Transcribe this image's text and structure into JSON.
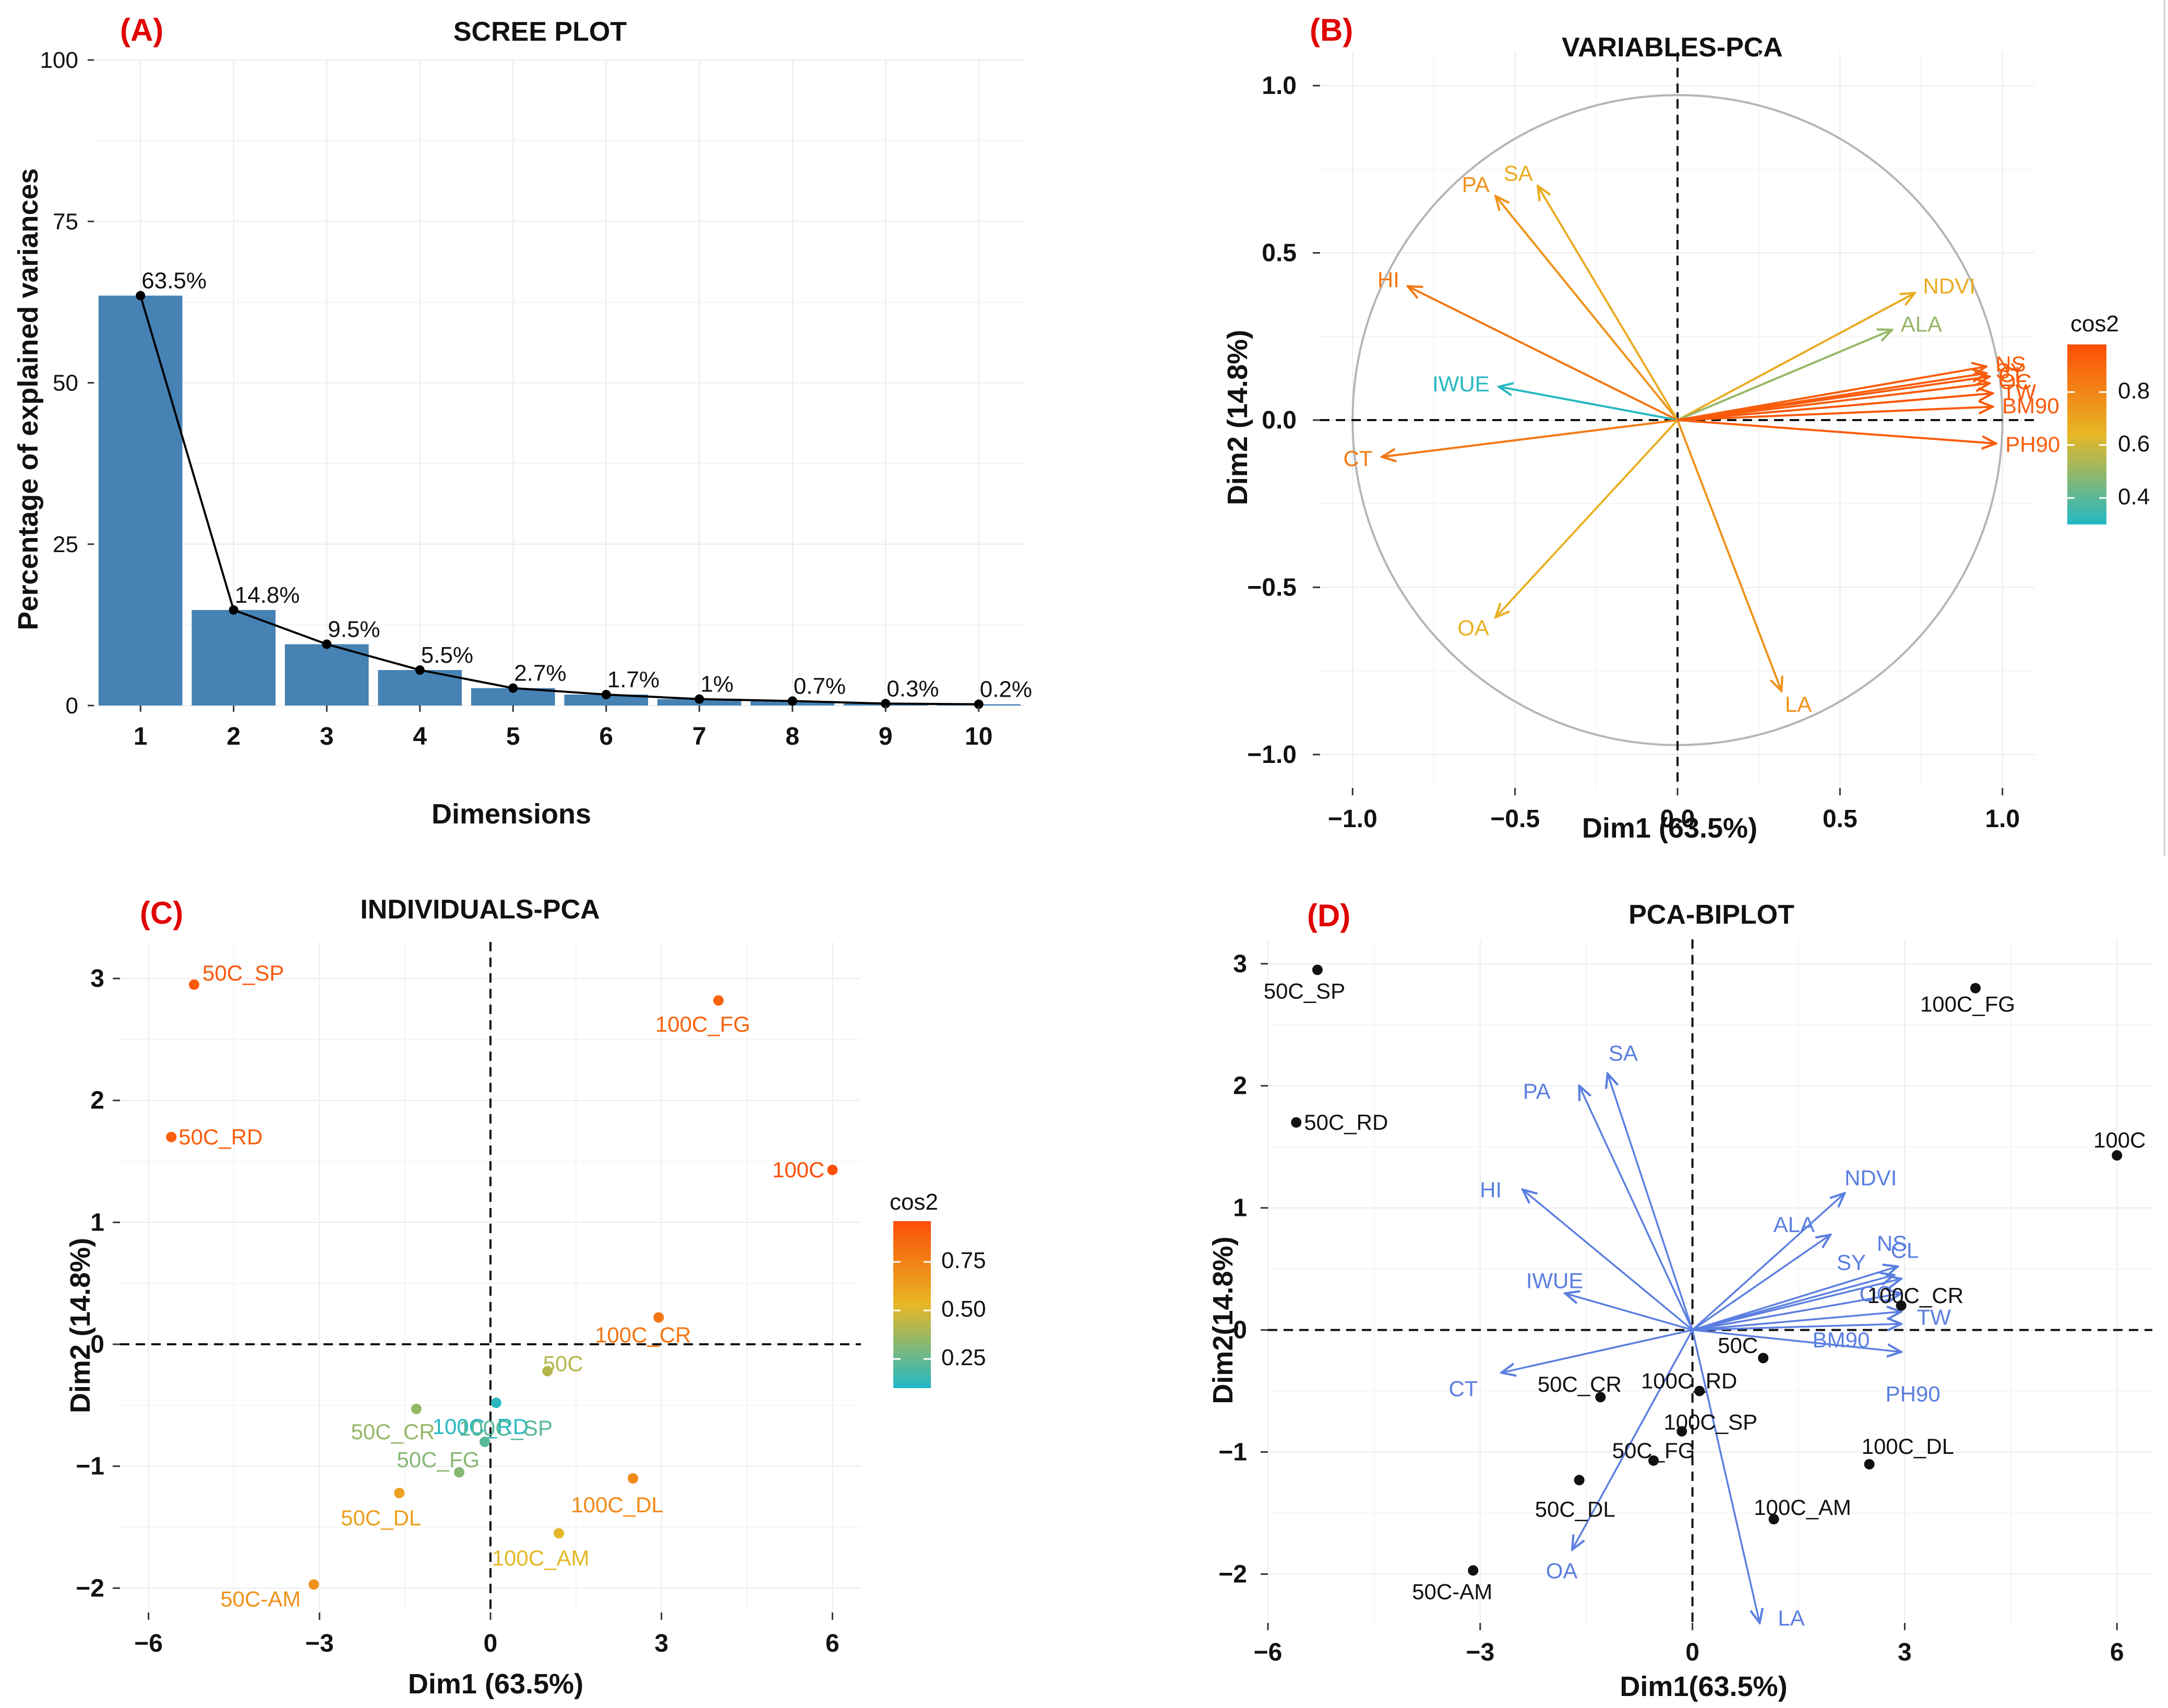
{
  "colors": {
    "bar": "#4682b4",
    "panel_label": "#e00000",
    "biplot_arrow": "#5b7fe0",
    "cos2_low": "#21b8c6",
    "cos2_mid": "#e8b725",
    "cos2_high": "#fc4e07"
  },
  "chart_data": [
    {
      "panel": "(A)",
      "type": "bar",
      "title": "SCREE PLOT",
      "xlabel": "Dimensions",
      "ylabel": "Percentage of explained variances",
      "categories": [
        "1",
        "2",
        "3",
        "4",
        "5",
        "6",
        "7",
        "8",
        "9",
        "10"
      ],
      "values": [
        63.5,
        14.8,
        9.5,
        5.5,
        2.7,
        1.7,
        1.0,
        0.7,
        0.3,
        0.2
      ],
      "value_labels": [
        "63.5%",
        "14.8%",
        "9.5%",
        "5.5%",
        "2.7%",
        "1.7%",
        "1%",
        "0.7%",
        "0.3%",
        "0.2%"
      ],
      "ylim": [
        0,
        100
      ],
      "yticks": [
        "0",
        "25",
        "50",
        "75",
        "100"
      ]
    },
    {
      "panel": "(B)",
      "type": "scatter",
      "title": "VARIABLES-PCA",
      "xlabel": "Dim1 (63.5%)",
      "ylabel": "Dim2 (14.8%)",
      "xlim": [
        -1.1,
        1.1
      ],
      "ylim": [
        -1.1,
        1.1
      ],
      "xticks": [
        "−1.0",
        "−0.5",
        "0.0",
        "0.5",
        "1.0"
      ],
      "yticks": [
        "−1.0",
        "−0.5",
        "0.0",
        "0.5",
        "1.0"
      ],
      "legend_title": "cos2",
      "legend_ticks": [
        "0.4",
        "0.6",
        "0.8"
      ],
      "cos2_range": [
        0.3,
        0.98
      ],
      "vectors": [
        {
          "name": "PA",
          "x": -0.56,
          "y": 0.67,
          "cos2": 0.76,
          "label_text": "PA"
        },
        {
          "name": "SA",
          "x": -0.43,
          "y": 0.7,
          "cos2": 0.68,
          "label_text": "SA"
        },
        {
          "name": "HI",
          "x": -0.83,
          "y": 0.4,
          "cos2": 0.85,
          "label_text": "HI"
        },
        {
          "name": "IWUE",
          "x": -0.55,
          "y": 0.1,
          "cos2": 0.31,
          "label_text": "IWUE"
        },
        {
          "name": "CT",
          "x": -0.91,
          "y": -0.11,
          "cos2": 0.84,
          "label_text": "CT"
        },
        {
          "name": "OA",
          "x": -0.56,
          "y": -0.59,
          "cos2": 0.66,
          "label_text": "OA"
        },
        {
          "name": "LA",
          "x": 0.32,
          "y": -0.81,
          "cos2": 0.76,
          "label_text": "LA"
        },
        {
          "name": "NDVI",
          "x": 0.73,
          "y": 0.38,
          "cos2": 0.68,
          "label_text": "NDVI"
        },
        {
          "name": "ALA",
          "x": 0.66,
          "y": 0.27,
          "cos2": 0.5,
          "label_text": "ALA"
        },
        {
          "name": "NS",
          "x": 0.95,
          "y": 0.16,
          "cos2": 0.93,
          "label_text": "NS"
        },
        {
          "name": "SY",
          "x": 0.95,
          "y": 0.14,
          "cos2": 0.93,
          "label_text": "SY"
        },
        {
          "name": "CL",
          "x": 0.96,
          "y": 0.13,
          "cos2": 0.94,
          "label_text": "CL"
        },
        {
          "name": "OC",
          "x": 0.96,
          "y": 0.11,
          "cos2": 0.93,
          "label_text": "OC"
        },
        {
          "name": "TW",
          "x": 0.97,
          "y": 0.08,
          "cos2": 0.95,
          "label_text": "TW"
        },
        {
          "name": "BM90",
          "x": 0.97,
          "y": 0.04,
          "cos2": 0.94,
          "label_text": "BM90"
        },
        {
          "name": "PH90",
          "x": 0.98,
          "y": -0.07,
          "cos2": 0.93,
          "label_text": "PH90"
        }
      ]
    },
    {
      "panel": "(C)",
      "type": "scatter",
      "title": "INDIVIDUALS-PCA",
      "xlabel": "Dim1 (63.5%)",
      "ylabel": "Dim2 (14.8%)",
      "xlim": [
        -6.5,
        6.5
      ],
      "ylim": [
        -2.2,
        3.3
      ],
      "xticks": [
        "−6",
        "−3",
        "0",
        "3",
        "6"
      ],
      "yticks": [
        "−2",
        "−1",
        "0",
        "1",
        "2",
        "3"
      ],
      "legend_title": "cos2",
      "legend_ticks": [
        "0.25",
        "0.50",
        "0.75"
      ],
      "cos2_range": [
        0.1,
        0.96
      ],
      "points": [
        {
          "label": "50C_SP",
          "x": -5.2,
          "y": 2.95,
          "cos2": 0.92
        },
        {
          "label": "100C_FG",
          "x": 4.0,
          "y": 2.82,
          "cos2": 0.88
        },
        {
          "label": "50C_RD",
          "x": -5.6,
          "y": 1.7,
          "cos2": 0.9
        },
        {
          "label": "100C",
          "x": 6.0,
          "y": 1.43,
          "cos2": 0.95
        },
        {
          "label": "100C_CR",
          "x": 2.95,
          "y": 0.22,
          "cos2": 0.8
        },
        {
          "label": "50C",
          "x": 1.0,
          "y": -0.22,
          "cos2": 0.42
        },
        {
          "label": "100C_RD",
          "x": 0.1,
          "y": -0.48,
          "cos2": 0.12
        },
        {
          "label": "50C_CR",
          "x": -1.3,
          "y": -0.53,
          "cos2": 0.35
        },
        {
          "label": "100C_SP",
          "x": -0.1,
          "y": -0.8,
          "cos2": 0.22
        },
        {
          "label": "50C_FG",
          "x": -0.55,
          "y": -1.05,
          "cos2": 0.32
        },
        {
          "label": "100C_DL",
          "x": 2.5,
          "y": -1.1,
          "cos2": 0.72
        },
        {
          "label": "50C_DL",
          "x": -1.6,
          "y": -1.22,
          "cos2": 0.62
        },
        {
          "label": "100C_AM",
          "x": 1.2,
          "y": -1.55,
          "cos2": 0.52
        },
        {
          "label": "50C-AM",
          "x": -3.1,
          "y": -1.97,
          "cos2": 0.68
        }
      ]
    },
    {
      "panel": "(D)",
      "type": "scatter",
      "title": "PCA-BIPLOT",
      "xlabel": "Dim1(63.5%)",
      "ylabel": "Dim2(14.8%)",
      "xlim": [
        -6.0,
        6.5
      ],
      "ylim": [
        -2.4,
        3.2
      ],
      "xticks": [
        "−6",
        "−3",
        "0",
        "3",
        "6"
      ],
      "yticks": [
        "−2",
        "−1",
        "0",
        "1",
        "2",
        "3"
      ],
      "points": [
        {
          "label": "50C_SP",
          "x": -5.3,
          "y": 2.95
        },
        {
          "label": "100C_FG",
          "x": 4.0,
          "y": 2.8
        },
        {
          "label": "50C_RD",
          "x": -5.6,
          "y": 1.7
        },
        {
          "label": "100C",
          "x": 6.0,
          "y": 1.43
        },
        {
          "label": "100C_CR",
          "x": 2.95,
          "y": 0.2
        },
        {
          "label": "50C",
          "x": 1.0,
          "y": -0.23
        },
        {
          "label": "100C_RD",
          "x": 0.1,
          "y": -0.5
        },
        {
          "label": "50C_CR",
          "x": -1.3,
          "y": -0.55
        },
        {
          "label": "100C_SP",
          "x": -0.15,
          "y": -0.83
        },
        {
          "label": "50C_FG",
          "x": -0.55,
          "y": -1.07
        },
        {
          "label": "100C_DL",
          "x": 2.5,
          "y": -1.1
        },
        {
          "label": "50C_DL",
          "x": -1.6,
          "y": -1.23
        },
        {
          "label": "100C_AM",
          "x": 1.15,
          "y": -1.55
        },
        {
          "label": "50C-AM",
          "x": -3.1,
          "y": -1.97
        }
      ],
      "vectors": [
        {
          "name": "PA",
          "x": -1.6,
          "y": 2.0
        },
        {
          "name": "SA",
          "x": -1.2,
          "y": 2.1
        },
        {
          "name": "HI",
          "x": -2.4,
          "y": 1.15
        },
        {
          "name": "IWUE",
          "x": -1.8,
          "y": 0.3
        },
        {
          "name": "CT",
          "x": -2.7,
          "y": -0.35
        },
        {
          "name": "OA",
          "x": -1.7,
          "y": -1.8
        },
        {
          "name": "LA",
          "x": 0.95,
          "y": -2.4
        },
        {
          "name": "NDVI",
          "x": 2.15,
          "y": 1.12
        },
        {
          "name": "ALA",
          "x": 1.95,
          "y": 0.78
        },
        {
          "name": "NS",
          "x": 2.9,
          "y": 0.52
        },
        {
          "name": "SY",
          "x": 2.85,
          "y": 0.45
        },
        {
          "name": "CL",
          "x": 2.95,
          "y": 0.42
        },
        {
          "name": "OC",
          "x": 2.95,
          "y": 0.3
        },
        {
          "name": "TW",
          "x": 2.95,
          "y": 0.15
        },
        {
          "name": "BM90",
          "x": 2.95,
          "y": 0.05
        },
        {
          "name": "PH90",
          "x": 2.95,
          "y": -0.18
        }
      ]
    }
  ]
}
